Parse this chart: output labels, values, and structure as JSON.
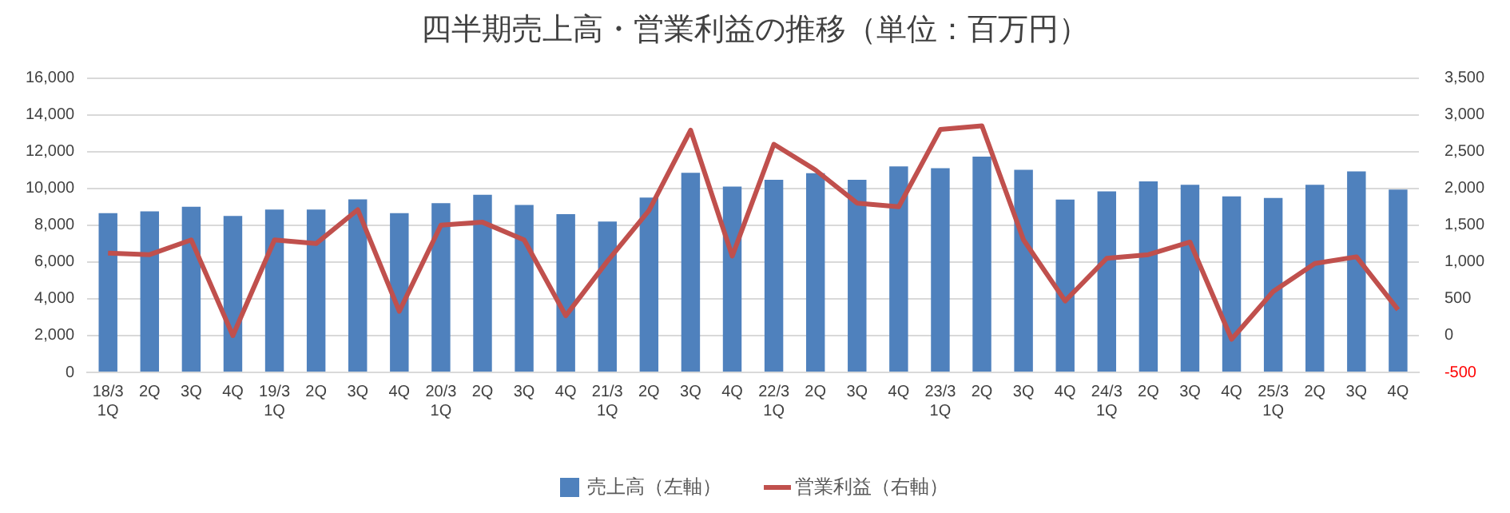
{
  "chart_data": {
    "type": "bar",
    "title": "四半期売上高・営業利益の推移（単位：百万円）",
    "categories": [
      "18/3 1Q",
      "2Q",
      "3Q",
      "4Q",
      "19/3 1Q",
      "2Q",
      "3Q",
      "4Q",
      "20/3 1Q",
      "2Q",
      "3Q",
      "4Q",
      "21/3 1Q",
      "2Q",
      "3Q",
      "4Q",
      "22/3 1Q",
      "2Q",
      "3Q",
      "4Q",
      "23/3 1Q",
      "2Q",
      "3Q",
      "4Q",
      "24/3 1Q",
      "2Q",
      "3Q",
      "4Q",
      "25/3 1Q",
      "2Q",
      "3Q",
      "4Q"
    ],
    "series": [
      {
        "name": "売上高（左軸）",
        "color": "#4f81bd",
        "values": [
          8650,
          8750,
          9000,
          8500,
          8850,
          8850,
          9400,
          8650,
          9200,
          9650,
          9100,
          8600,
          8200,
          9500,
          10850,
          10100,
          10470,
          10830,
          10470,
          11190,
          11100,
          11730,
          11010,
          9390,
          9840,
          10380,
          10200,
          9570,
          9480,
          10200,
          10920,
          9930
        ]
      },
      {
        "name": "営業利益（右軸）",
        "type": "line",
        "axis": "y2",
        "color": "#c0504d",
        "values": [
          1120,
          1100,
          1300,
          0,
          1300,
          1250,
          1710,
          330,
          1500,
          1540,
          1300,
          270,
          1010,
          1700,
          2790,
          1080,
          2600,
          2250,
          1800,
          1750,
          2800,
          2850,
          1300,
          470,
          1050,
          1100,
          1270,
          -50,
          600,
          980,
          1070,
          350
        ]
      }
    ],
    "ylim": [
      0,
      16000
    ],
    "yticks": [
      0,
      {
        "value": 2000,
        "label": "2,000"
      },
      {
        "value": 4000,
        "label": "4,000"
      },
      {
        "value": 6000,
        "label": "6,000"
      },
      {
        "value": 8000,
        "label": "8,000"
      },
      {
        "value": 10000,
        "label": "10,000"
      },
      {
        "value": 12000,
        "label": "12,000"
      },
      {
        "value": 14000,
        "label": "14,000"
      },
      {
        "value": 16000,
        "label": "16,000"
      }
    ],
    "y2lim": [
      -500,
      3500
    ],
    "y2ticks": [
      -500,
      0,
      500,
      {
        "value": 1000,
        "label": "1,000"
      },
      {
        "value": 1500,
        "label": "1,500"
      },
      {
        "value": 2000,
        "label": "2,000"
      },
      {
        "value": 2500,
        "label": "2,500"
      },
      {
        "value": 3000,
        "label": "3,000"
      },
      {
        "value": 3500,
        "label": "3,500"
      }
    ],
    "grid": "y",
    "legend": "bottom",
    "marker": "none"
  }
}
